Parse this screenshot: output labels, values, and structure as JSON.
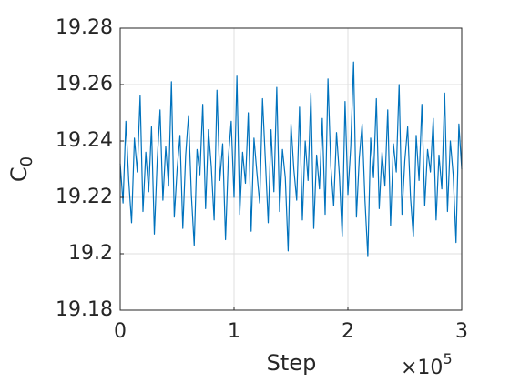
{
  "chart_data": {
    "type": "line",
    "xlabel": "Step",
    "ylabel": {
      "text": "C",
      "subscript": "0"
    },
    "x_exponent": {
      "base": "×10",
      "power": "5"
    },
    "xlim": [
      0,
      300000
    ],
    "xticks": [
      0,
      {
        "value": 100000,
        "label": "1"
      },
      {
        "value": 200000,
        "label": "2"
      },
      {
        "value": 300000,
        "label": "3"
      }
    ],
    "ylim": [
      19.18,
      19.28
    ],
    "yticks": [
      19.18,
      19.2,
      19.22,
      19.24,
      19.26,
      19.28
    ],
    "grid": true,
    "x": [
      0,
      2500,
      5000,
      7500,
      10000,
      12500,
      15000,
      17500,
      20000,
      22500,
      25000,
      27500,
      30000,
      32500,
      35000,
      37500,
      40000,
      42500,
      45000,
      47500,
      50000,
      52500,
      55000,
      57500,
      60000,
      62500,
      65000,
      67500,
      70000,
      72500,
      75000,
      77500,
      80000,
      82500,
      85000,
      87500,
      90000,
      92500,
      95000,
      97500,
      100000,
      102500,
      105000,
      107500,
      110000,
      112500,
      115000,
      117500,
      120000,
      122500,
      125000,
      127500,
      130000,
      132500,
      135000,
      137500,
      140000,
      142500,
      145000,
      147500,
      150000,
      152500,
      155000,
      157500,
      160000,
      162500,
      165000,
      167500,
      170000,
      172500,
      175000,
      177500,
      180000,
      182500,
      185000,
      187500,
      190000,
      192500,
      195000,
      197500,
      200000,
      202500,
      205000,
      207500,
      210000,
      212500,
      215000,
      217500,
      220000,
      222500,
      225000,
      227500,
      230000,
      232500,
      235000,
      237500,
      240000,
      242500,
      245000,
      247500,
      250000,
      252500,
      255000,
      257500,
      260000,
      262500,
      265000,
      267500,
      270000,
      272500,
      275000,
      277500,
      280000,
      282500,
      285000,
      287500,
      290000,
      292500,
      295000,
      297500,
      300000
    ],
    "series": [
      {
        "color": "#0072bd",
        "values": [
          19.232,
          19.218,
          19.247,
          19.226,
          19.211,
          19.241,
          19.229,
          19.256,
          19.215,
          19.236,
          19.222,
          19.245,
          19.207,
          19.233,
          19.251,
          19.219,
          19.238,
          19.224,
          19.261,
          19.213,
          19.23,
          19.242,
          19.209,
          19.235,
          19.249,
          19.221,
          19.203,
          19.237,
          19.228,
          19.253,
          19.216,
          19.244,
          19.231,
          19.212,
          19.258,
          19.226,
          19.239,
          19.205,
          19.234,
          19.247,
          19.22,
          19.263,
          19.214,
          19.236,
          19.225,
          19.25,
          19.208,
          19.241,
          19.229,
          19.218,
          19.255,
          19.233,
          19.211,
          19.244,
          19.222,
          19.259,
          19.215,
          19.237,
          19.227,
          19.201,
          19.246,
          19.23,
          19.219,
          19.252,
          19.212,
          19.24,
          19.226,
          19.257,
          19.209,
          19.235,
          19.223,
          19.248,
          19.214,
          19.262,
          19.231,
          19.217,
          19.243,
          19.228,
          19.206,
          19.254,
          19.221,
          19.238,
          19.268,
          19.213,
          19.234,
          19.246,
          19.219,
          19.199,
          19.241,
          19.227,
          19.255,
          19.216,
          19.236,
          19.224,
          19.251,
          19.21,
          19.239,
          19.229,
          19.26,
          19.214,
          19.233,
          19.245,
          19.22,
          19.206,
          19.242,
          19.226,
          19.253,
          19.217,
          19.237,
          19.229,
          19.248,
          19.212,
          19.235,
          19.223,
          19.257,
          19.215,
          19.24,
          19.228,
          19.204,
          19.246,
          19.23
        ]
      }
    ]
  }
}
